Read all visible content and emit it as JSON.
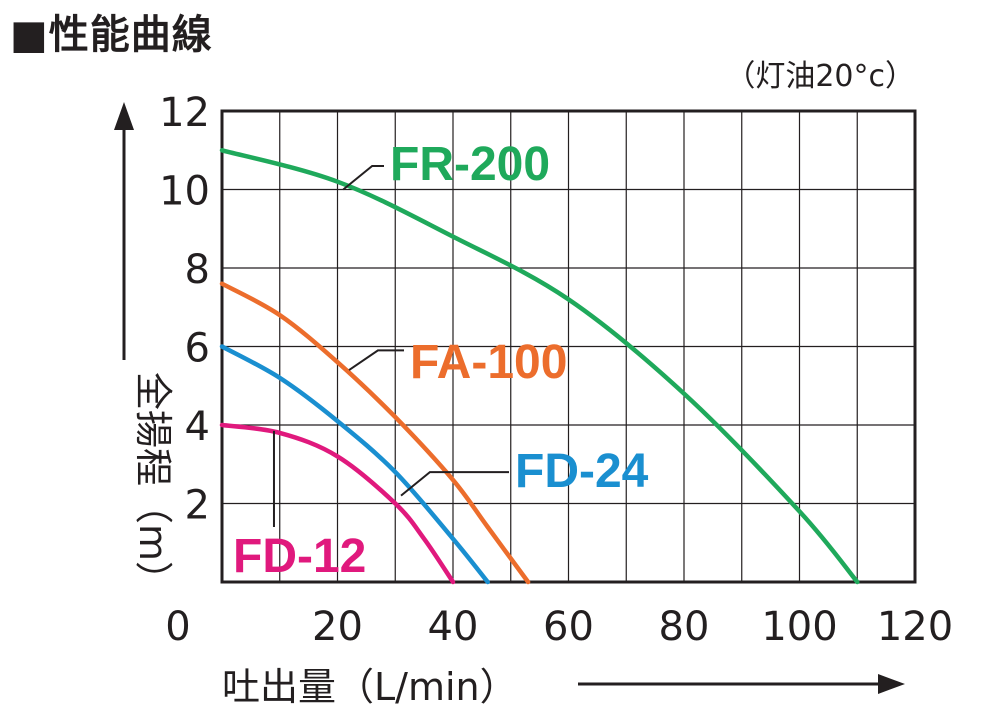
{
  "title": "■性能曲線",
  "chart_data": {
    "type": "line",
    "title": "性能曲線",
    "note": "（灯油20°c）",
    "xlabel": "吐出量（L/min）",
    "ylabel": "全揚程（m）",
    "xlim": [
      0,
      120
    ],
    "ylim": [
      0,
      12
    ],
    "xticks": [
      0,
      20,
      40,
      60,
      80,
      100,
      120
    ],
    "yticks": [
      0,
      2,
      4,
      6,
      8,
      10,
      12
    ],
    "grid": true,
    "legend": "labels-on-curves",
    "series": [
      {
        "name": "FR-200",
        "color": "#1fa95b",
        "x": [
          0,
          20,
          40,
          60,
          80,
          100,
          110
        ],
        "y": [
          11.0,
          10.2,
          8.8,
          7.2,
          4.8,
          1.8,
          0
        ]
      },
      {
        "name": "FA-100",
        "color": "#ec6d2c",
        "x": [
          0,
          10,
          20,
          30,
          40,
          46,
          53
        ],
        "y": [
          7.6,
          6.8,
          5.6,
          4.2,
          2.6,
          1.4,
          0
        ]
      },
      {
        "name": "FD-24",
        "color": "#1a8fd0",
        "x": [
          0,
          10,
          20,
          30,
          40,
          46
        ],
        "y": [
          6.0,
          5.2,
          4.1,
          2.8,
          1.1,
          0
        ]
      },
      {
        "name": "FD-12",
        "color": "#e0197d",
        "x": [
          0,
          10,
          20,
          30,
          35,
          40
        ],
        "y": [
          4.0,
          3.8,
          3.2,
          2.0,
          1.1,
          0
        ]
      }
    ]
  }
}
